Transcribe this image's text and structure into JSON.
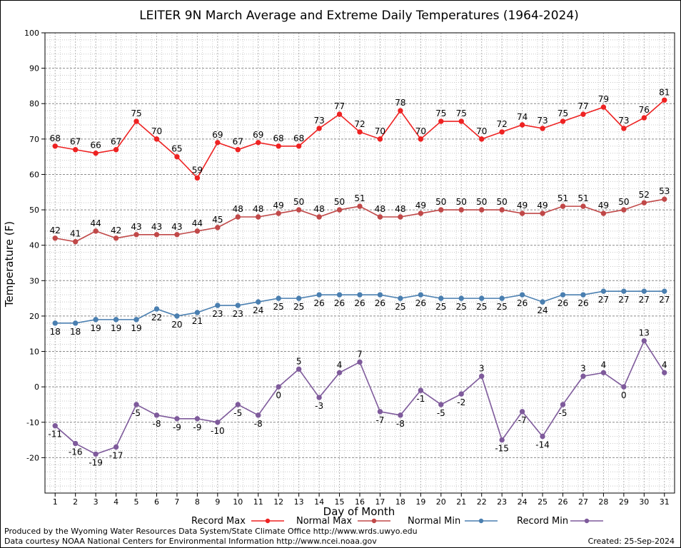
{
  "chart_data": {
    "type": "line",
    "title": "LEITER 9N March Average and Extreme Daily Temperatures (1964-2024)",
    "xlabel": "Day of Month",
    "ylabel": "Temperature (F)",
    "xlim": [
      1,
      31
    ],
    "ylim": [
      -30,
      100
    ],
    "y_ticks": [
      -20,
      -10,
      0,
      10,
      20,
      30,
      40,
      50,
      60,
      70,
      80,
      90,
      100
    ],
    "x": [
      1,
      2,
      3,
      4,
      5,
      6,
      7,
      8,
      9,
      10,
      11,
      12,
      13,
      14,
      15,
      16,
      17,
      18,
      19,
      20,
      21,
      22,
      23,
      24,
      25,
      26,
      27,
      28,
      29,
      30,
      31
    ],
    "grid": true,
    "legend": "bottom",
    "series": [
      {
        "name": "Record Max",
        "color": "#ee2222",
        "values": [
          68,
          67,
          66,
          67,
          75,
          70,
          65,
          59,
          69,
          67,
          69,
          68,
          68,
          73,
          77,
          72,
          70,
          78,
          70,
          75,
          75,
          70,
          72,
          74,
          73,
          75,
          77,
          79,
          73,
          76,
          81
        ]
      },
      {
        "name": "Normal Max",
        "color": "#c04848",
        "values": [
          42,
          41,
          44,
          42,
          43,
          43,
          43,
          44,
          45,
          48,
          48,
          49,
          50,
          48,
          50,
          51,
          48,
          48,
          49,
          50,
          50,
          50,
          50,
          49,
          49,
          51,
          51,
          49,
          50,
          52,
          53
        ]
      },
      {
        "name": "Normal Min",
        "color": "#4a7fb0",
        "values": [
          18,
          18,
          19,
          19,
          19,
          22,
          20,
          21,
          23,
          23,
          24,
          25,
          25,
          26,
          26,
          26,
          26,
          25,
          26,
          25,
          25,
          25,
          25,
          26,
          24,
          26,
          26,
          27,
          27,
          27,
          27
        ]
      },
      {
        "name": "Record Min",
        "color": "#7e5a9b",
        "values": [
          -11,
          -16,
          -19,
          -17,
          -5,
          -8,
          -9,
          -9,
          -10,
          -5,
          -8,
          0,
          5,
          -3,
          4,
          7,
          -7,
          -8,
          -1,
          -5,
          -2,
          3,
          -15,
          -7,
          -14,
          -5,
          3,
          4,
          0,
          13,
          4
        ]
      }
    ]
  },
  "footer": {
    "credit_line1": "Produced by the Wyoming Water Resources Data System/State Climate Office http://www.wrds.uwyo.edu",
    "credit_line2": "Data courtesy NOAA National Centers for Environmental Information http://www.ncei.noaa.gov",
    "created": "Created:  25-Sep-2024"
  }
}
